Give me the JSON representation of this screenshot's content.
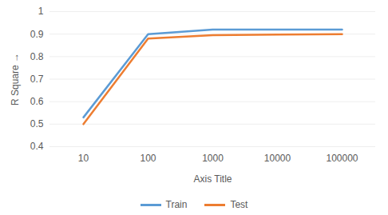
{
  "chart_data": {
    "type": "line",
    "x_label": "Axis Title",
    "y_label": "R Square",
    "categories": [
      "10",
      "100",
      "1000",
      "10000",
      "100000"
    ],
    "series": [
      {
        "name": "Train",
        "color": "#5b9bd5",
        "values": [
          0.53,
          0.9,
          0.92,
          0.92,
          0.92
        ]
      },
      {
        "name": "Test",
        "color": "#ed7d31",
        "values": [
          0.5,
          0.88,
          0.895,
          0.898,
          0.9
        ]
      }
    ],
    "ylim": [
      0.4,
      1
    ],
    "yticks": [
      0.4,
      0.5,
      0.6,
      0.7,
      0.8,
      0.9,
      1
    ],
    "grid": true,
    "legend": "bottom"
  }
}
